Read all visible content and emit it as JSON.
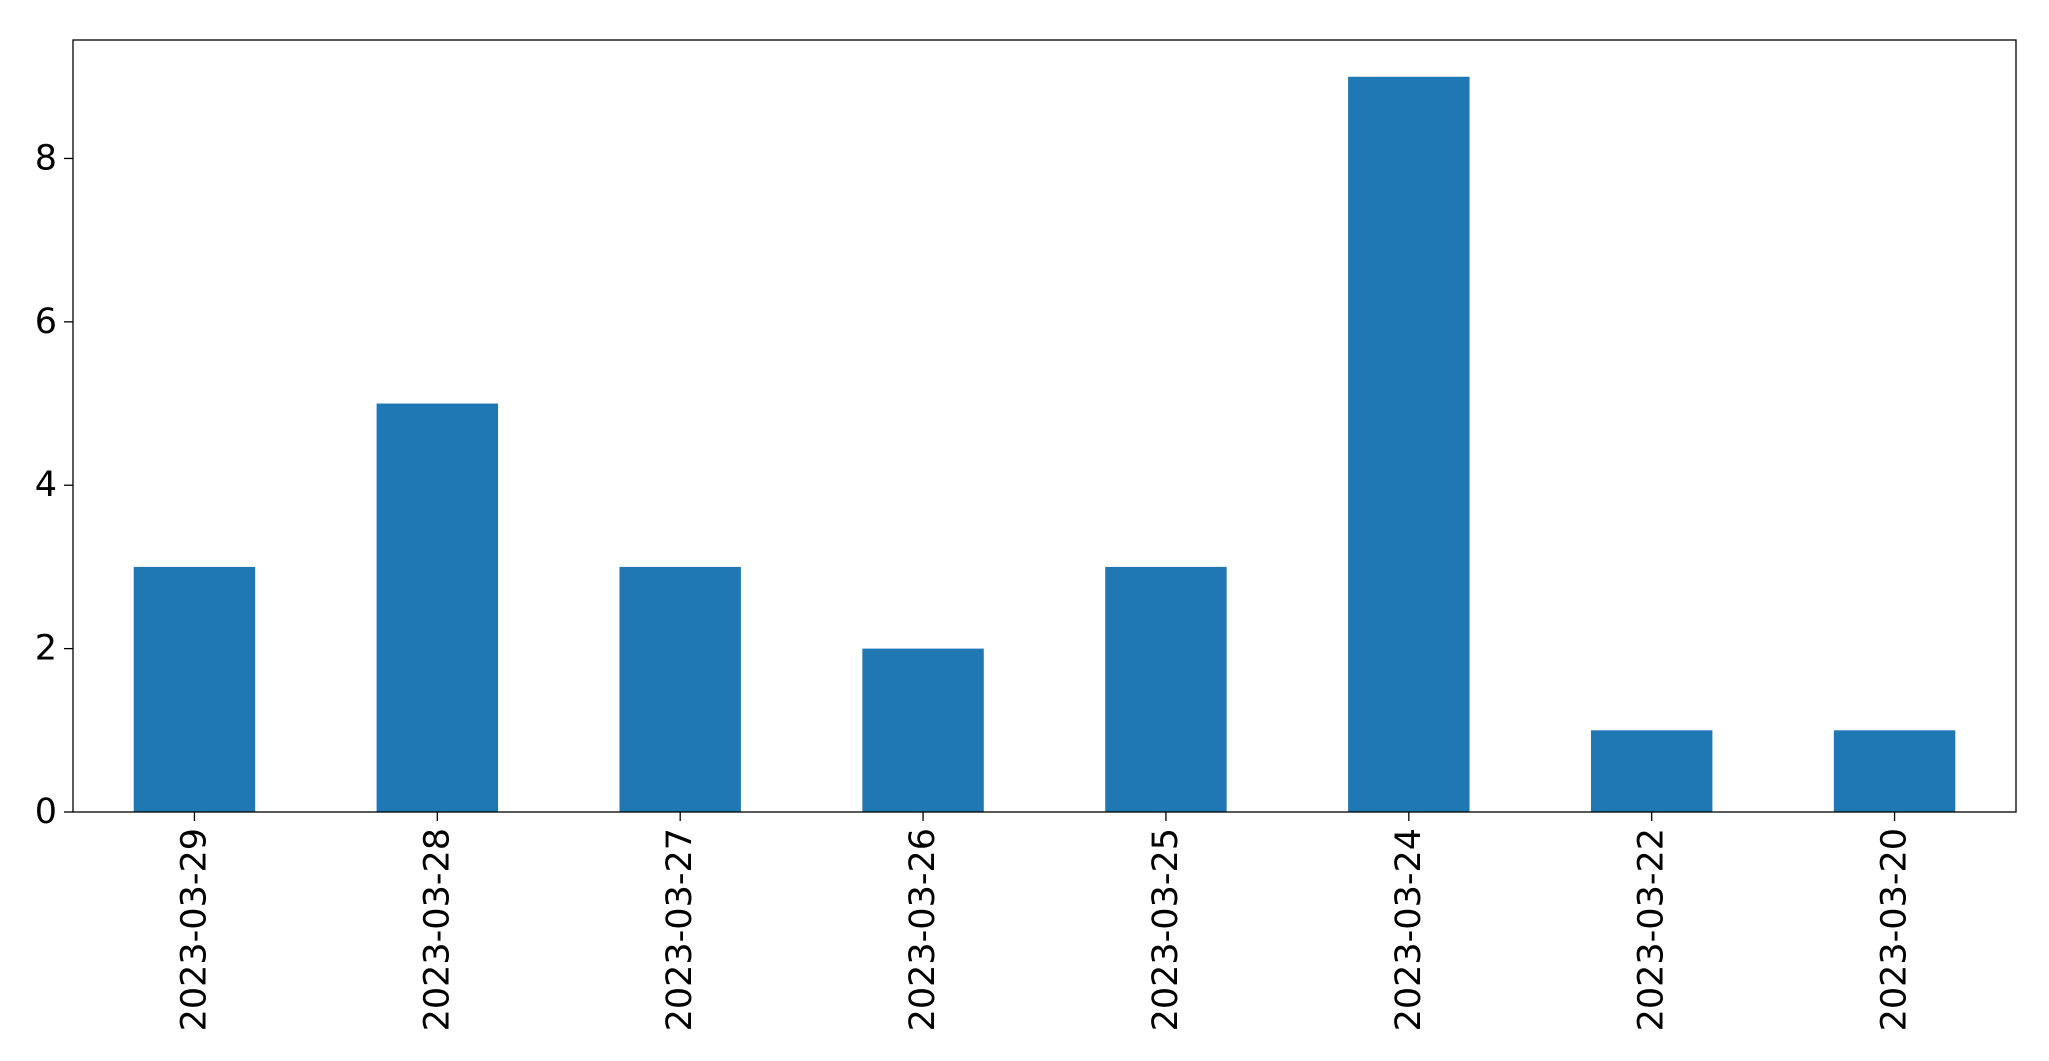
{
  "chart_data": {
    "type": "bar",
    "title": "",
    "xlabel": "",
    "ylabel": "",
    "categories": [
      "2023-03-29",
      "2023-03-28",
      "2023-03-27",
      "2023-03-26",
      "2023-03-25",
      "2023-03-24",
      "2023-03-22",
      "2023-03-20"
    ],
    "values": [
      3,
      5,
      3,
      2,
      3,
      9,
      1,
      1
    ],
    "ylim": [
      0,
      9.45
    ],
    "yticks": [
      0,
      2,
      4,
      6,
      8
    ],
    "bar_color": "#1f77b4",
    "x_tick_rotation": "vertical",
    "grid": false,
    "legend": "none"
  }
}
